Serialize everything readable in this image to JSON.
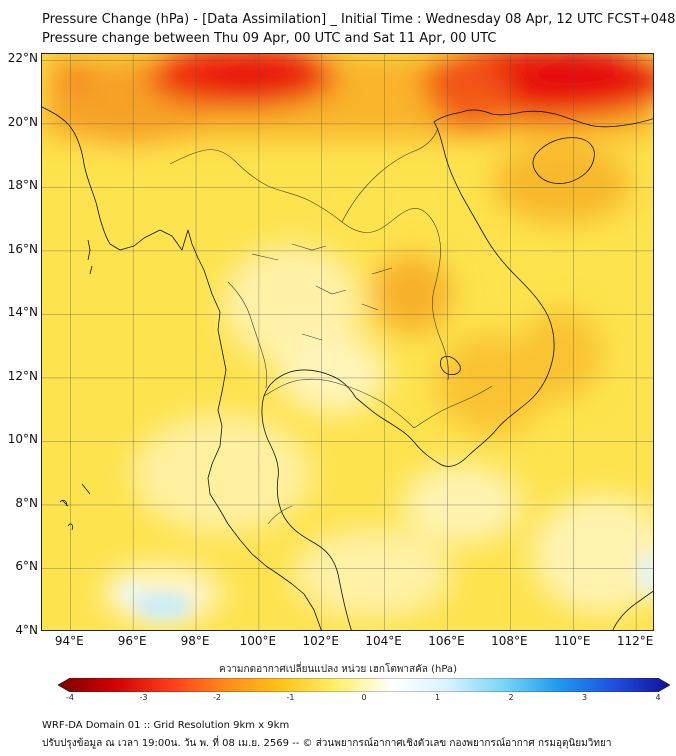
{
  "header": {
    "title_line1": "Pressure Change (hPa) - [Data Assimilation] _ Initial Time : Wednesday 08 Apr, 12 UTC FCST+048",
    "title_line2": "Pressure change between Thu 09 Apr, 00 UTC and Sat 11 Apr, 00 UTC"
  },
  "map": {
    "lat_labels": [
      "22°N",
      "20°N",
      "18°N",
      "16°N",
      "14°N",
      "12°N",
      "10°N",
      "8°N",
      "6°N",
      "4°N"
    ],
    "lon_labels": [
      "94°E",
      "96°E",
      "98°E",
      "100°E",
      "102°E",
      "104°E",
      "106°E",
      "108°E",
      "110°E",
      "112°E"
    ],
    "lat_range": [
      4,
      22.2
    ],
    "lon_range": [
      93.1,
      112.6
    ],
    "grid": true,
    "colors": {
      "ocean_base": "#fde34e",
      "strong_fall": "#e8120c",
      "moderate_fall": "#f7a21c",
      "weak_change": "#ffffff",
      "weak_rise": "#bfe8f7",
      "coastline": "#111111"
    }
  },
  "colorbar": {
    "title": "ความกดอากาศเปลี่ยนแปลง หน่วย เฮกโตพาสคัล (hPa)",
    "ticks": [
      "-4",
      "-3",
      "-2",
      "-1",
      "0",
      "1",
      "2",
      "3",
      "4"
    ],
    "range": [
      -4,
      4
    ],
    "stops": [
      "#7a0000",
      "#d00000",
      "#ff3b1a",
      "#ff8a1a",
      "#ffc21a",
      "#fff06a",
      "#ffffff",
      "#d8f3ff",
      "#79d6f7",
      "#1e9af0",
      "#1f4fe0",
      "#10109a"
    ]
  },
  "footer": {
    "line1": "WRF-DA Domain 01 :: Grid Resolution 9km x 9km",
    "line2": "ปรับปรุงข้อมูล ณ เวลา 19:00น. วัน พ. ที่ 08 เม.ย. 2569 -- © ส่วนพยากรณ์อากาศเชิงตัวเลข กองพยากรณ์อากาศ กรมอุตุนิยมวิทยา"
  }
}
